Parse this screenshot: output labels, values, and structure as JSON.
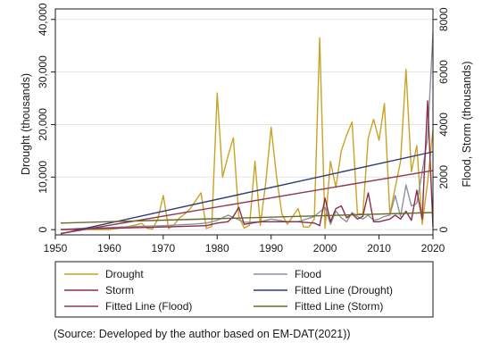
{
  "chart_data": {
    "type": "line",
    "title": "",
    "xlabel": "",
    "ylabel_left": "Drought (thousands)",
    "ylabel_right": "Flood, Storm (thousands)",
    "xlim": [
      1950,
      2020
    ],
    "ylim_left": [
      -1000,
      42000
    ],
    "ylim_right": [
      -200,
      8400
    ],
    "x_ticks": [
      1950,
      1960,
      1970,
      1980,
      1990,
      2000,
      2010,
      2020
    ],
    "y_left_ticks": [
      0,
      10000,
      20000,
      30000,
      40000
    ],
    "y_left_tick_labels": [
      "0",
      "10,000",
      "20,000",
      "30,000",
      "40,000"
    ],
    "y_right_ticks": [
      0,
      2000,
      4000,
      6000,
      8000
    ],
    "y_right_tick_labels": [
      "0",
      "2000",
      "4000",
      "6000",
      "8000"
    ],
    "grid": true,
    "legend_position": "bottom",
    "source": "(Source: Developed by the author based on EM-DAT(2021))",
    "series": [
      {
        "name": "Drought",
        "axis": "left",
        "color": "#c9a227",
        "x": [
          1951,
          1955,
          1960,
          1963,
          1965,
          1966,
          1967,
          1968,
          1969,
          1970,
          1971,
          1972,
          1973,
          1974,
          1975,
          1976,
          1977,
          1978,
          1979,
          1980,
          1981,
          1982,
          1983,
          1984,
          1985,
          1986,
          1987,
          1988,
          1989,
          1990,
          1991,
          1992,
          1993,
          1994,
          1995,
          1996,
          1997,
          1998,
          1999,
          2000,
          2001,
          2002,
          2003,
          2004,
          2005,
          2006,
          2007,
          2008,
          2009,
          2010,
          2011,
          2012,
          2013,
          2014,
          2015,
          2016,
          2017,
          2018,
          2019,
          2020
        ],
        "y": [
          0,
          0,
          0,
          500,
          900,
          1200,
          300,
          100,
          2000,
          6500,
          200,
          900,
          2200,
          3000,
          4000,
          5500,
          7000,
          200,
          600,
          26000,
          10000,
          14000,
          17500,
          2500,
          300,
          800,
          13000,
          800,
          9000,
          19500,
          10000,
          3000,
          1000,
          2500,
          4000,
          500,
          500,
          2000,
          36500,
          300,
          13000,
          8000,
          15000,
          18000,
          20500,
          3000,
          3000,
          17500,
          21000,
          17000,
          24000,
          3000,
          8000,
          13000,
          30500,
          11000,
          16000,
          1000,
          9000,
          19000
        ]
      },
      {
        "name": "Flood",
        "axis": "right",
        "color": "#8a94a0",
        "x": [
          1951,
          1955,
          1960,
          1965,
          1970,
          1975,
          1978,
          1980,
          1982,
          1985,
          1988,
          1990,
          1993,
          1995,
          1998,
          2000,
          2001,
          2002,
          2003,
          2004,
          2005,
          2006,
          2007,
          2008,
          2009,
          2010,
          2011,
          2012,
          2013,
          2014,
          2015,
          2016,
          2017,
          2018,
          2019,
          2020
        ],
        "y": [
          0,
          50,
          80,
          120,
          150,
          200,
          250,
          350,
          550,
          280,
          300,
          400,
          300,
          300,
          500,
          850,
          200,
          700,
          450,
          300,
          650,
          500,
          400,
          550,
          350,
          400,
          500,
          550,
          1300,
          500,
          1700,
          900,
          1000,
          2200,
          3500,
          7500
        ]
      },
      {
        "name": "Storm",
        "axis": "right",
        "color": "#8b2e46",
        "x": [
          1951,
          1960,
          1970,
          1978,
          1980,
          1982,
          1983,
          1984,
          1985,
          1988,
          1990,
          1995,
          1998,
          1999,
          2000,
          2001,
          2002,
          2003,
          2004,
          2005,
          2006,
          2007,
          2008,
          2009,
          2010,
          2012,
          2013,
          2014,
          2015,
          2016,
          2017,
          2018,
          2019,
          2020
        ],
        "y": [
          0,
          50,
          100,
          150,
          250,
          300,
          500,
          850,
          200,
          300,
          300,
          300,
          250,
          150,
          1200,
          300,
          800,
          900,
          450,
          600,
          400,
          500,
          1400,
          300,
          300,
          400,
          550,
          400,
          700,
          350,
          1500,
          400,
          4900,
          100
        ]
      },
      {
        "name": "Fitted Line (Drought)",
        "axis": "left",
        "color": "#2f3a78",
        "x": [
          1951,
          2020
        ],
        "y": [
          -800,
          14800
        ]
      },
      {
        "name": "Fitted Line (Flood)",
        "axis": "right",
        "color": "#8b3a5a",
        "x": [
          1951,
          2020
        ],
        "y": [
          -150,
          2250
        ]
      },
      {
        "name": "Fitted Line (Storm)",
        "axis": "right",
        "color": "#6b6a2a",
        "x": [
          1951,
          2020
        ],
        "y": [
          250,
          650
        ]
      }
    ]
  }
}
